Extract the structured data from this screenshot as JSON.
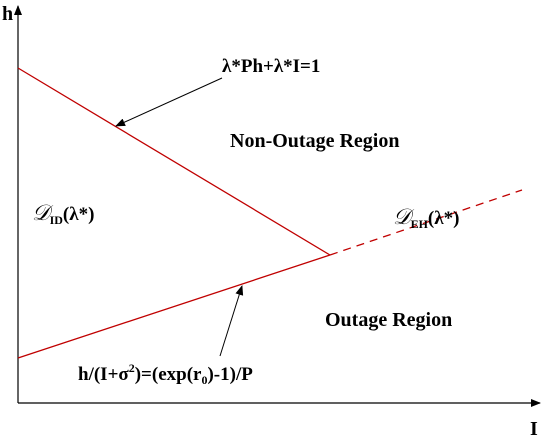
{
  "axes": {
    "y_label": "h",
    "x_label": "I"
  },
  "boundary_line_label": "λ*Ph+λ*I=1",
  "upper_region": "Non-Outage Region",
  "lower_region": "Outage Region",
  "region_id": {
    "symbol": "𝒟",
    "sub": "ID",
    "arg": "(λ*)"
  },
  "region_eh": {
    "symbol": "𝒟",
    "sub": "EH",
    "arg": "(λ*)"
  },
  "outage_line_label": {
    "p1": "h/(I+σ",
    "sup": "2",
    "p2": ")=(exp(r",
    "sub": "0",
    "p3": ")-1)/P"
  }
}
